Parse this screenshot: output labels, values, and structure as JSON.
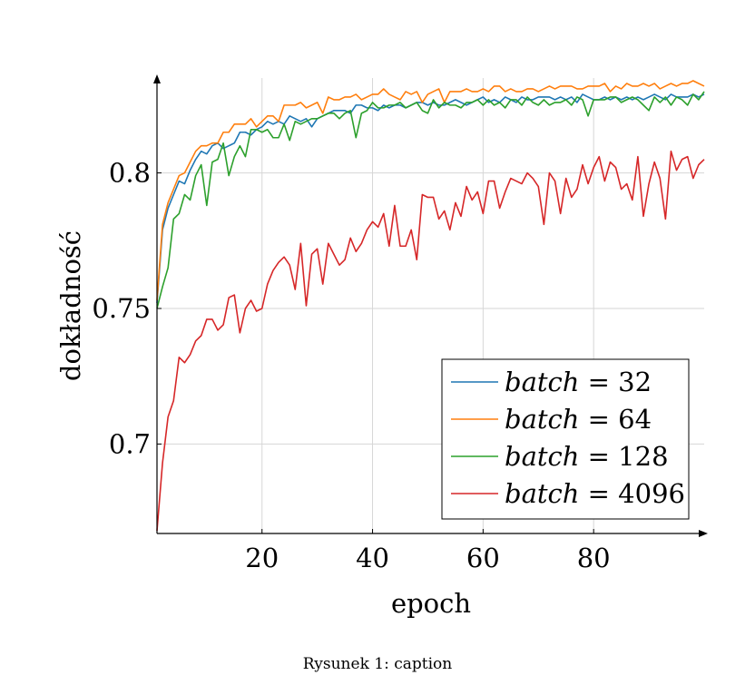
{
  "caption": "Rysunek 1: caption",
  "chart_data": {
    "type": "line",
    "xlabel": "epoch",
    "ylabel": "dokładność",
    "xlim": [
      1,
      100
    ],
    "ylim": [
      0.667,
      0.835
    ],
    "xticks": [
      20,
      40,
      60,
      80
    ],
    "yticks": [
      0.7,
      0.75,
      0.8
    ],
    "ytick_labels": [
      "0.7",
      "0.75",
      "0.8"
    ],
    "grid": true,
    "legend_position": "bottom-right",
    "series": [
      {
        "name": "batch = 32",
        "legend_var": "batch",
        "legend_value": "32",
        "color": "#1f77b4",
        "values": [
          0.752,
          0.779,
          0.787,
          0.792,
          0.797,
          0.796,
          0.801,
          0.805,
          0.808,
          0.807,
          0.81,
          0.811,
          0.809,
          0.81,
          0.811,
          0.815,
          0.815,
          0.814,
          0.816,
          0.817,
          0.819,
          0.818,
          0.819,
          0.818,
          0.821,
          0.82,
          0.819,
          0.82,
          0.817,
          0.82,
          0.821,
          0.822,
          0.823,
          0.823,
          0.823,
          0.822,
          0.825,
          0.825,
          0.824,
          0.824,
          0.823,
          0.825,
          0.824,
          0.825,
          0.825,
          0.824,
          0.825,
          0.826,
          0.826,
          0.825,
          0.826,
          0.825,
          0.825,
          0.826,
          0.827,
          0.826,
          0.825,
          0.826,
          0.827,
          0.828,
          0.826,
          0.827,
          0.826,
          0.828,
          0.827,
          0.826,
          0.828,
          0.827,
          0.827,
          0.828,
          0.828,
          0.828,
          0.827,
          0.828,
          0.827,
          0.828,
          0.826,
          0.829,
          0.828,
          0.827,
          0.827,
          0.828,
          0.827,
          0.828,
          0.827,
          0.828,
          0.827,
          0.828,
          0.827,
          0.828,
          0.829,
          0.828,
          0.827,
          0.829,
          0.828,
          0.828,
          0.828,
          0.829,
          0.828,
          0.829
        ]
      },
      {
        "name": "batch = 64",
        "legend_var": "batch",
        "legend_value": "64",
        "color": "#ff7f0e",
        "values": [
          0.753,
          0.781,
          0.789,
          0.794,
          0.799,
          0.8,
          0.804,
          0.808,
          0.81,
          0.81,
          0.811,
          0.811,
          0.815,
          0.815,
          0.818,
          0.818,
          0.818,
          0.82,
          0.817,
          0.819,
          0.821,
          0.821,
          0.819,
          0.825,
          0.825,
          0.825,
          0.826,
          0.824,
          0.825,
          0.826,
          0.822,
          0.828,
          0.827,
          0.827,
          0.828,
          0.828,
          0.829,
          0.827,
          0.828,
          0.829,
          0.829,
          0.831,
          0.829,
          0.828,
          0.827,
          0.83,
          0.829,
          0.83,
          0.826,
          0.829,
          0.83,
          0.831,
          0.826,
          0.83,
          0.83,
          0.83,
          0.831,
          0.83,
          0.83,
          0.831,
          0.83,
          0.832,
          0.832,
          0.83,
          0.831,
          0.83,
          0.83,
          0.831,
          0.831,
          0.83,
          0.831,
          0.832,
          0.831,
          0.832,
          0.832,
          0.832,
          0.831,
          0.831,
          0.832,
          0.832,
          0.832,
          0.833,
          0.83,
          0.832,
          0.831,
          0.833,
          0.832,
          0.832,
          0.833,
          0.832,
          0.833,
          0.831,
          0.832,
          0.833,
          0.832,
          0.833,
          0.833,
          0.834,
          0.833,
          0.832
        ]
      },
      {
        "name": "batch = 128",
        "legend_var": "batch",
        "legend_value": "128",
        "color": "#2ca02c",
        "values": [
          0.75,
          0.758,
          0.765,
          0.783,
          0.785,
          0.792,
          0.79,
          0.799,
          0.803,
          0.788,
          0.804,
          0.805,
          0.811,
          0.799,
          0.806,
          0.81,
          0.806,
          0.816,
          0.816,
          0.815,
          0.816,
          0.813,
          0.813,
          0.818,
          0.812,
          0.819,
          0.818,
          0.819,
          0.82,
          0.82,
          0.821,
          0.822,
          0.822,
          0.82,
          0.822,
          0.823,
          0.813,
          0.822,
          0.823,
          0.826,
          0.824,
          0.824,
          0.825,
          0.825,
          0.826,
          0.824,
          0.825,
          0.826,
          0.823,
          0.822,
          0.827,
          0.824,
          0.826,
          0.825,
          0.825,
          0.824,
          0.826,
          0.826,
          0.827,
          0.825,
          0.827,
          0.825,
          0.826,
          0.824,
          0.827,
          0.827,
          0.825,
          0.828,
          0.826,
          0.825,
          0.827,
          0.825,
          0.826,
          0.826,
          0.827,
          0.825,
          0.828,
          0.827,
          0.821,
          0.827,
          0.827,
          0.827,
          0.828,
          0.828,
          0.826,
          0.827,
          0.828,
          0.827,
          0.825,
          0.823,
          0.828,
          0.826,
          0.828,
          0.825,
          0.828,
          0.827,
          0.825,
          0.829,
          0.827,
          0.83
        ]
      },
      {
        "name": "batch = 4096",
        "legend_var": "batch",
        "legend_value": "4096",
        "color": "#d62728",
        "values": [
          0.668,
          0.693,
          0.71,
          0.716,
          0.732,
          0.73,
          0.733,
          0.738,
          0.74,
          0.746,
          0.746,
          0.742,
          0.744,
          0.754,
          0.755,
          0.741,
          0.75,
          0.753,
          0.749,
          0.75,
          0.759,
          0.764,
          0.767,
          0.769,
          0.766,
          0.757,
          0.774,
          0.751,
          0.77,
          0.772,
          0.759,
          0.774,
          0.77,
          0.766,
          0.768,
          0.776,
          0.771,
          0.774,
          0.779,
          0.782,
          0.78,
          0.785,
          0.773,
          0.788,
          0.773,
          0.773,
          0.779,
          0.768,
          0.792,
          0.791,
          0.791,
          0.783,
          0.786,
          0.779,
          0.789,
          0.784,
          0.795,
          0.79,
          0.793,
          0.785,
          0.797,
          0.797,
          0.787,
          0.793,
          0.798,
          0.797,
          0.796,
          0.8,
          0.798,
          0.795,
          0.781,
          0.8,
          0.797,
          0.785,
          0.798,
          0.791,
          0.794,
          0.803,
          0.796,
          0.802,
          0.806,
          0.797,
          0.804,
          0.802,
          0.794,
          0.796,
          0.79,
          0.806,
          0.784,
          0.796,
          0.804,
          0.798,
          0.783,
          0.808,
          0.801,
          0.805,
          0.806,
          0.798,
          0.803,
          0.805
        ]
      }
    ]
  }
}
